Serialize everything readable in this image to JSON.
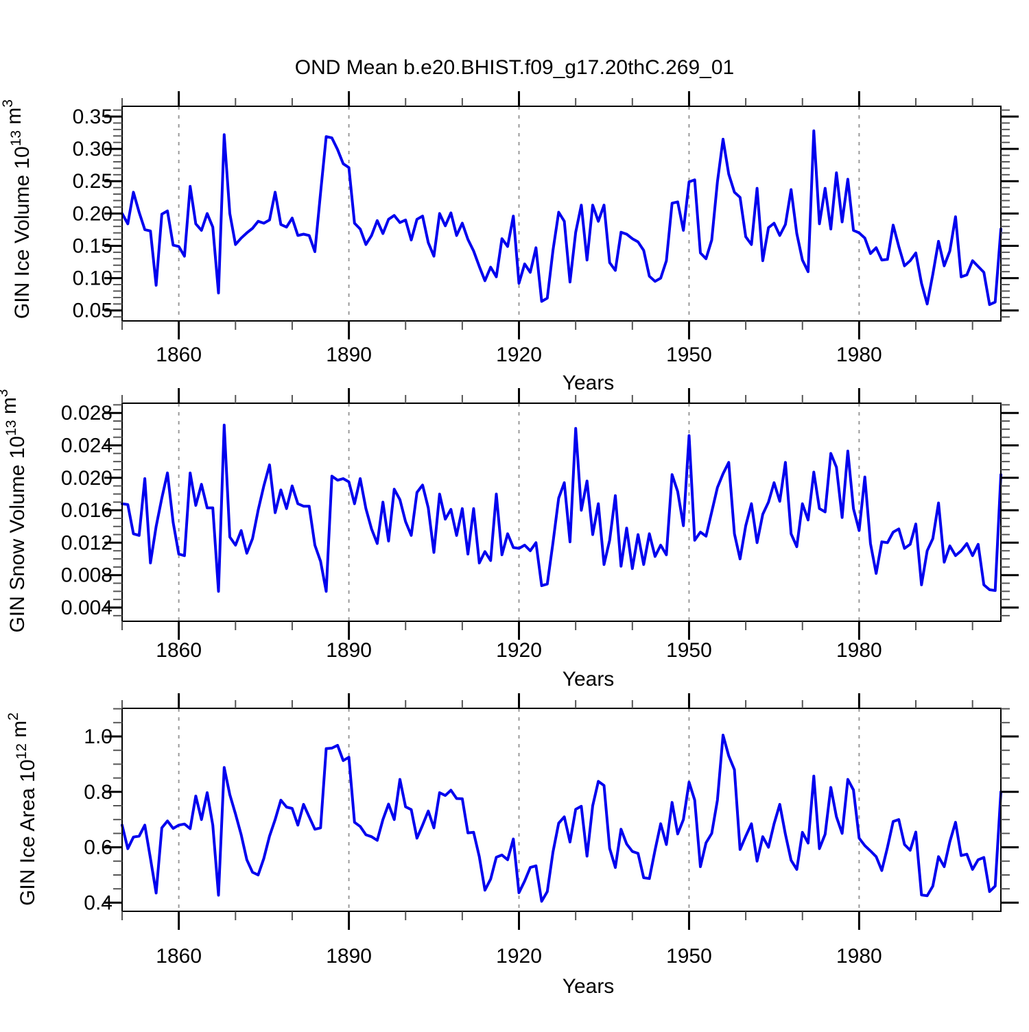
{
  "title": "OND Mean b.e20.BHIST.f09_g17.20thC.269_01",
  "figure": {
    "background_color": "#ffffff",
    "line_color": "#0000ee",
    "grid_color": "#999999",
    "frame_color": "#000000",
    "minor_tick_color": "#555555",
    "major_tick_color": "#000000",
    "xlabel": "Years"
  },
  "chart_data": [
    {
      "type": "line",
      "panel": "ice-volume",
      "ylabel_plain": "GIN Ice Volume 10^13 m^3",
      "ylabel_parts": [
        {
          "t": "GIN Ice Volume 10"
        },
        {
          "t": "13",
          "sup": true
        },
        {
          "t": " m"
        },
        {
          "t": "3",
          "sup": true
        }
      ],
      "xlabel": "Years",
      "x_start": 1850,
      "x_end": 2005,
      "x_major_ticks": [
        1860,
        1890,
        1920,
        1950,
        1980
      ],
      "x_tick_labels": [
        "1860",
        "1890",
        "1920",
        "1950",
        "1980"
      ],
      "x_minor_step": 10,
      "grid": "vertical-dashed",
      "legend": "none",
      "ylim": [
        0.0338,
        0.3659
      ],
      "yticks": [
        0.05,
        0.1,
        0.15,
        0.2,
        0.25,
        0.3,
        0.35
      ],
      "ytick_labels": [
        "0.05",
        "0.10",
        "0.15",
        "0.20",
        "0.25",
        "0.30",
        "0.35"
      ],
      "y_minor_step": 0.01,
      "values": [
        0.2,
        0.184,
        0.233,
        0.202,
        0.175,
        0.173,
        0.089,
        0.199,
        0.204,
        0.151,
        0.149,
        0.134,
        0.242,
        0.184,
        0.174,
        0.2,
        0.179,
        0.077,
        0.322,
        0.2,
        0.152,
        0.162,
        0.17,
        0.177,
        0.188,
        0.185,
        0.19,
        0.233,
        0.183,
        0.179,
        0.193,
        0.166,
        0.168,
        0.166,
        0.141,
        0.232,
        0.319,
        0.317,
        0.299,
        0.277,
        0.271,
        0.185,
        0.176,
        0.152,
        0.166,
        0.189,
        0.169,
        0.191,
        0.197,
        0.186,
        0.19,
        0.159,
        0.191,
        0.196,
        0.155,
        0.134,
        0.2,
        0.181,
        0.201,
        0.166,
        0.185,
        0.16,
        0.142,
        0.118,
        0.096,
        0.117,
        0.102,
        0.161,
        0.149,
        0.196,
        0.092,
        0.122,
        0.109,
        0.147,
        0.064,
        0.069,
        0.143,
        0.202,
        0.188,
        0.094,
        0.171,
        0.213,
        0.128,
        0.213,
        0.188,
        0.213,
        0.124,
        0.112,
        0.171,
        0.168,
        0.161,
        0.156,
        0.143,
        0.103,
        0.095,
        0.1,
        0.127,
        0.216,
        0.218,
        0.174,
        0.249,
        0.252,
        0.139,
        0.13,
        0.159,
        0.249,
        0.315,
        0.261,
        0.233,
        0.225,
        0.164,
        0.152,
        0.239,
        0.127,
        0.178,
        0.185,
        0.166,
        0.183,
        0.237,
        0.169,
        0.128,
        0.11,
        0.328,
        0.184,
        0.239,
        0.176,
        0.263,
        0.187,
        0.253,
        0.174,
        0.17,
        0.162,
        0.138,
        0.147,
        0.128,
        0.129,
        0.182,
        0.149,
        0.119,
        0.127,
        0.139,
        0.092,
        0.06,
        0.106,
        0.157,
        0.119,
        0.142,
        0.195,
        0.102,
        0.105,
        0.127,
        0.118,
        0.109,
        0.059,
        0.063,
        0.176
      ]
    },
    {
      "type": "line",
      "panel": "snow-volume",
      "ylabel_plain": "GIN Snow Volume 10^13 m^3",
      "ylabel_parts": [
        {
          "t": "GIN Snow Volume 10"
        },
        {
          "t": "13",
          "sup": true
        },
        {
          "t": " m"
        },
        {
          "t": "3",
          "sup": true
        }
      ],
      "xlabel": "Years",
      "x_start": 1850,
      "x_end": 2005,
      "x_major_ticks": [
        1860,
        1890,
        1920,
        1950,
        1980
      ],
      "x_tick_labels": [
        "1860",
        "1890",
        "1920",
        "1950",
        "1980"
      ],
      "x_minor_step": 10,
      "grid": "vertical-dashed",
      "legend": "none",
      "ylim": [
        0.00231,
        0.0292
      ],
      "yticks": [
        0.004,
        0.008,
        0.012,
        0.016,
        0.02,
        0.024,
        0.028
      ],
      "ytick_labels": [
        "0.004",
        "0.008",
        "0.012",
        "0.016",
        "0.020",
        "0.024",
        "0.028"
      ],
      "y_minor_step": 0.001,
      "values": [
        0.0168,
        0.0167,
        0.0131,
        0.0129,
        0.0199,
        0.0095,
        0.014,
        0.0175,
        0.0206,
        0.0145,
        0.0106,
        0.0104,
        0.0206,
        0.0166,
        0.0192,
        0.0163,
        0.0163,
        0.006,
        0.0265,
        0.0127,
        0.0117,
        0.0135,
        0.0107,
        0.0125,
        0.016,
        0.019,
        0.0216,
        0.0157,
        0.0185,
        0.0162,
        0.019,
        0.0168,
        0.0165,
        0.0165,
        0.0117,
        0.0097,
        0.006,
        0.0202,
        0.0197,
        0.0199,
        0.0195,
        0.0168,
        0.0199,
        0.0162,
        0.0137,
        0.0119,
        0.017,
        0.0122,
        0.0186,
        0.0173,
        0.0146,
        0.0129,
        0.0182,
        0.0191,
        0.0163,
        0.0108,
        0.018,
        0.0149,
        0.0161,
        0.0129,
        0.0162,
        0.0106,
        0.0162,
        0.0095,
        0.0109,
        0.0098,
        0.018,
        0.0105,
        0.0131,
        0.0114,
        0.0113,
        0.0117,
        0.011,
        0.012,
        0.0067,
        0.0069,
        0.012,
        0.0175,
        0.0194,
        0.0121,
        0.0261,
        0.016,
        0.0196,
        0.013,
        0.0168,
        0.0093,
        0.0123,
        0.0178,
        0.0091,
        0.0138,
        0.0088,
        0.013,
        0.0093,
        0.0131,
        0.0103,
        0.0117,
        0.0105,
        0.0204,
        0.0183,
        0.0141,
        0.0252,
        0.0123,
        0.0133,
        0.0128,
        0.0158,
        0.0188,
        0.0205,
        0.0219,
        0.0131,
        0.01,
        0.0141,
        0.0168,
        0.012,
        0.0155,
        0.017,
        0.0194,
        0.0171,
        0.0219,
        0.0131,
        0.0115,
        0.0168,
        0.0148,
        0.0207,
        0.0162,
        0.0158,
        0.023,
        0.0213,
        0.0151,
        0.0233,
        0.0162,
        0.0135,
        0.0201,
        0.0119,
        0.0082,
        0.0121,
        0.012,
        0.0133,
        0.0137,
        0.0113,
        0.0118,
        0.0143,
        0.0068,
        0.011,
        0.0125,
        0.0169,
        0.0096,
        0.0116,
        0.0104,
        0.011,
        0.0119,
        0.0104,
        0.0118,
        0.0068,
        0.0062,
        0.0061,
        0.0204
      ]
    },
    {
      "type": "line",
      "panel": "ice-area",
      "ylabel_plain": "GIN Ice Area 10^12 m^2",
      "ylabel_parts": [
        {
          "t": "GIN Ice Area 10"
        },
        {
          "t": "12",
          "sup": true
        },
        {
          "t": " m"
        },
        {
          "t": "2",
          "sup": true
        }
      ],
      "xlabel": "Years",
      "x_start": 1850,
      "x_end": 2005,
      "x_major_ticks": [
        1860,
        1890,
        1920,
        1950,
        1980
      ],
      "x_tick_labels": [
        "1860",
        "1890",
        "1920",
        "1950",
        "1980"
      ],
      "x_minor_step": 10,
      "grid": "vertical-dashed",
      "legend": "none",
      "ylim": [
        0.3688,
        1.1015
      ],
      "yticks": [
        0.4,
        0.6,
        0.8,
        1.0
      ],
      "ytick_labels": [
        "0.4",
        "0.6",
        "0.8",
        "1.0"
      ],
      "y_minor_step": 0.05,
      "values": [
        0.68,
        0.595,
        0.637,
        0.64,
        0.68,
        0.56,
        0.435,
        0.67,
        0.695,
        0.668,
        0.68,
        0.684,
        0.667,
        0.785,
        0.7,
        0.797,
        0.68,
        0.427,
        0.888,
        0.79,
        0.72,
        0.645,
        0.555,
        0.51,
        0.5,
        0.56,
        0.64,
        0.7,
        0.77,
        0.745,
        0.74,
        0.68,
        0.755,
        0.71,
        0.665,
        0.67,
        0.956,
        0.958,
        0.968,
        0.913,
        0.925,
        0.69,
        0.675,
        0.645,
        0.638,
        0.625,
        0.7,
        0.756,
        0.7,
        0.845,
        0.746,
        0.736,
        0.633,
        0.68,
        0.731,
        0.67,
        0.797,
        0.787,
        0.806,
        0.776,
        0.775,
        0.652,
        0.654,
        0.566,
        0.445,
        0.485,
        0.564,
        0.572,
        0.555,
        0.63,
        0.436,
        0.478,
        0.527,
        0.533,
        0.405,
        0.44,
        0.583,
        0.687,
        0.71,
        0.619,
        0.737,
        0.748,
        0.568,
        0.75,
        0.838,
        0.823,
        0.596,
        0.527,
        0.665,
        0.612,
        0.585,
        0.578,
        0.49,
        0.487,
        0.59,
        0.685,
        0.61,
        0.762,
        0.648,
        0.7,
        0.835,
        0.77,
        0.53,
        0.616,
        0.65,
        0.77,
        1.005,
        0.93,
        0.88,
        0.592,
        0.64,
        0.685,
        0.55,
        0.638,
        0.6,
        0.685,
        0.755,
        0.647,
        0.553,
        0.52,
        0.654,
        0.615,
        0.857,
        0.595,
        0.647,
        0.816,
        0.71,
        0.65,
        0.845,
        0.807,
        0.633,
        0.606,
        0.587,
        0.566,
        0.516,
        0.6,
        0.693,
        0.7,
        0.61,
        0.589,
        0.655,
        0.428,
        0.425,
        0.46,
        0.566,
        0.53,
        0.62,
        0.69,
        0.57,
        0.575,
        0.52,
        0.555,
        0.563,
        0.44,
        0.46,
        0.8
      ]
    }
  ]
}
